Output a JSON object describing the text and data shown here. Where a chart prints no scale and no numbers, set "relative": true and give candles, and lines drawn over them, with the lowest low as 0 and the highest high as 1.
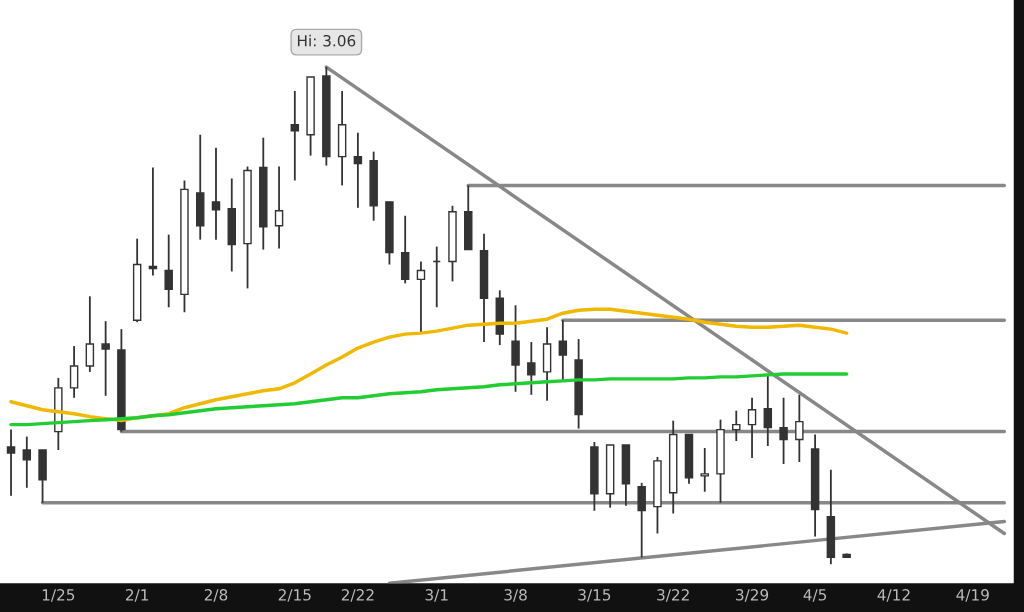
{
  "chart_data": {
    "type": "candlestick",
    "relative": true,
    "tick_labels": "x",
    "grid": false,
    "color": "#333333",
    "categories": [
      null,
      null,
      null,
      "1/25",
      null,
      null,
      null,
      null,
      "2/1",
      null,
      null,
      null,
      null,
      "2/8",
      null,
      null,
      null,
      null,
      "2/15",
      null,
      null,
      null,
      "2/22",
      null,
      null,
      null,
      null,
      "3/1",
      null,
      null,
      null,
      null,
      "3/8",
      null,
      null,
      null,
      null,
      "3/15",
      null,
      null,
      null,
      null,
      "3/22",
      null,
      null,
      null,
      null,
      "3/29",
      null,
      null,
      null,
      "4/5",
      null,
      null,
      null,
      null,
      "4/12",
      null,
      null,
      null,
      null,
      "4/19",
      null,
      null
    ],
    "ohlc": [
      [
        0.236,
        0.271,
        0.138,
        0.224
      ],
      [
        0.23,
        0.257,
        0.154,
        0.21
      ],
      [
        0.23,
        0.23,
        0.124,
        0.17
      ],
      [
        0.267,
        0.375,
        0.23,
        0.355
      ],
      [
        0.355,
        0.439,
        0.335,
        0.399
      ],
      [
        0.399,
        0.539,
        0.387,
        0.443
      ],
      [
        0.443,
        0.489,
        0.339,
        0.433
      ],
      [
        0.431,
        0.473,
        0.267,
        0.271
      ],
      [
        0.491,
        0.655,
        0.487,
        0.603
      ],
      [
        0.599,
        0.798,
        0.581,
        0.595
      ],
      [
        0.591,
        0.663,
        0.517,
        0.553
      ],
      [
        0.543,
        0.772,
        0.507,
        0.754
      ],
      [
        0.747,
        0.864,
        0.653,
        0.681
      ],
      [
        0.729,
        0.838,
        0.653,
        0.713
      ],
      [
        0.715,
        0.776,
        0.589,
        0.643
      ],
      [
        0.645,
        0.8,
        0.555,
        0.792
      ],
      [
        0.798,
        0.858,
        0.633,
        0.679
      ],
      [
        0.681,
        0.8,
        0.635,
        0.711
      ],
      [
        0.884,
        0.952,
        0.772,
        0.872
      ],
      [
        0.864,
        0.98,
        0.822,
        0.98
      ],
      [
        0.982,
        1.0,
        0.802,
        0.82
      ],
      [
        0.82,
        0.952,
        0.762,
        0.884
      ],
      [
        0.82,
        0.868,
        0.717,
        0.806
      ],
      [
        0.812,
        0.83,
        0.691,
        0.721
      ],
      [
        0.729,
        0.729,
        0.603,
        0.627
      ],
      [
        0.627,
        0.701,
        0.565,
        0.573
      ],
      [
        0.573,
        0.609,
        0.467,
        0.591
      ],
      [
        0.609,
        0.639,
        0.517,
        0.609
      ],
      [
        0.609,
        0.721,
        0.569,
        0.709
      ],
      [
        0.709,
        0.762,
        0.633,
        0.633
      ],
      [
        0.631,
        0.665,
        0.447,
        0.535
      ],
      [
        0.535,
        0.551,
        0.441,
        0.463
      ],
      [
        0.449,
        0.521,
        0.347,
        0.401
      ],
      [
        0.405,
        0.447,
        0.341,
        0.381
      ],
      [
        0.387,
        0.477,
        0.329,
        0.443
      ],
      [
        0.449,
        0.491,
        0.367,
        0.421
      ],
      [
        0.411,
        0.453,
        0.273,
        0.301
      ],
      [
        0.236,
        0.246,
        0.108,
        0.142
      ],
      [
        0.142,
        0.24,
        0.114,
        0.24
      ],
      [
        0.24,
        0.24,
        0.118,
        0.162
      ],
      [
        0.156,
        0.164,
        0.014,
        0.108
      ],
      [
        0.116,
        0.216,
        0.062,
        0.208
      ],
      [
        0.144,
        0.289,
        0.102,
        0.261
      ],
      [
        0.261,
        0.261,
        0.162,
        0.174
      ],
      [
        0.178,
        0.234,
        0.146,
        0.182
      ],
      [
        0.182,
        0.291,
        0.124,
        0.271
      ],
      [
        0.271,
        0.309,
        0.248,
        0.281
      ],
      [
        0.281,
        0.335,
        0.214,
        0.311
      ],
      [
        0.313,
        0.381,
        0.238,
        0.275
      ],
      [
        0.275,
        0.335,
        0.202,
        0.251
      ],
      [
        0.251,
        0.341,
        0.206,
        0.287
      ],
      [
        0.232,
        0.261,
        0.056,
        0.11
      ],
      [
        0.096,
        0.19,
        0,
        0.014
      ],
      [
        0.02,
        0.022,
        0.014,
        0.014
      ],
      null,
      null,
      null,
      null,
      null,
      null,
      null,
      null,
      null,
      null
    ],
    "series": [
      {
        "type": "line",
        "color": "#f0b800",
        "values": [
          0.327,
          0.319,
          0.311,
          0.307,
          0.303,
          0.297,
          0.293,
          0.289,
          0.295,
          0.299,
          0.303,
          0.315,
          0.323,
          0.331,
          0.337,
          0.343,
          0.349,
          0.353,
          0.365,
          0.383,
          0.401,
          0.417,
          0.435,
          0.447,
          0.457,
          0.463,
          0.465,
          0.469,
          0.475,
          0.481,
          0.483,
          0.485,
          0.485,
          0.489,
          0.493,
          0.505,
          0.511,
          0.513,
          0.513,
          0.509,
          0.505,
          0.501,
          0.497,
          0.493,
          0.487,
          0.483,
          0.479,
          0.477,
          0.477,
          0.479,
          0.481,
          0.477,
          0.473,
          0.465,
          null,
          null,
          null,
          null,
          null,
          null,
          null,
          null,
          null,
          null
        ]
      },
      {
        "type": "line",
        "color": "#22cc33",
        "values": [
          0.281,
          0.281,
          0.283,
          0.285,
          0.287,
          0.289,
          0.291,
          0.293,
          0.295,
          0.299,
          0.301,
          0.305,
          0.309,
          0.313,
          0.315,
          0.317,
          0.319,
          0.321,
          0.323,
          0.327,
          0.331,
          0.335,
          0.335,
          0.339,
          0.343,
          0.345,
          0.347,
          0.351,
          0.353,
          0.355,
          0.357,
          0.361,
          0.363,
          0.365,
          0.367,
          0.369,
          0.371,
          0.371,
          0.373,
          0.373,
          0.373,
          0.373,
          0.373,
          0.375,
          0.375,
          0.377,
          0.377,
          0.379,
          0.381,
          0.383,
          0.383,
          0.383,
          0.383,
          0.383,
          null,
          null,
          null,
          null,
          null,
          null,
          null,
          null,
          null,
          null
        ]
      },
      {
        "type": "line",
        "color": "#888888",
        "values": [
          null,
          null,
          null,
          null,
          null,
          null,
          null,
          null,
          null,
          null,
          null,
          null,
          null,
          null,
          null,
          null,
          null,
          null,
          null,
          null,
          1.0,
          null,
          null,
          null,
          null,
          null,
          null,
          null,
          null,
          null,
          null,
          null,
          null,
          null,
          null,
          null,
          null,
          null,
          null,
          null,
          null,
          null,
          null,
          null,
          null,
          null,
          null,
          null,
          null,
          null,
          null,
          null,
          null,
          null,
          null,
          null,
          null,
          null,
          null,
          null,
          null,
          null,
          null,
          0.062
        ]
      },
      {
        "type": "line",
        "color": "#888888",
        "values": [
          null,
          null,
          null,
          null,
          null,
          null,
          null,
          null,
          null,
          null,
          null,
          null,
          null,
          null,
          null,
          null,
          null,
          null,
          null,
          null,
          null,
          null,
          null,
          null,
          -0.038,
          null,
          null,
          null,
          null,
          null,
          null,
          null,
          null,
          null,
          null,
          null,
          null,
          null,
          null,
          null,
          null,
          null,
          null,
          null,
          null,
          null,
          null,
          null,
          null,
          null,
          null,
          null,
          null,
          null,
          null,
          null,
          null,
          null,
          null,
          null,
          null,
          null,
          null,
          0.086
        ]
      },
      {
        "type": "line",
        "color": "#888888",
        "values": [
          null,
          null,
          null,
          null,
          null,
          null,
          null,
          null,
          null,
          null,
          null,
          null,
          null,
          null,
          null,
          null,
          null,
          null,
          null,
          null,
          null,
          null,
          null,
          null,
          null,
          null,
          null,
          null,
          null,
          0.762,
          null,
          null,
          null,
          null,
          null,
          null,
          null,
          null,
          null,
          null,
          null,
          null,
          null,
          null,
          null,
          null,
          null,
          null,
          null,
          null,
          null,
          null,
          null,
          null,
          null,
          null,
          null,
          null,
          null,
          null,
          null,
          null,
          null,
          0.762
        ]
      },
      {
        "type": "line",
        "color": "#888888",
        "values": [
          null,
          null,
          null,
          null,
          null,
          null,
          null,
          null,
          null,
          null,
          null,
          null,
          null,
          null,
          null,
          null,
          null,
          null,
          null,
          null,
          null,
          null,
          null,
          null,
          null,
          null,
          null,
          null,
          null,
          null,
          null,
          null,
          null,
          null,
          null,
          0.491,
          null,
          null,
          null,
          null,
          null,
          null,
          null,
          null,
          null,
          null,
          null,
          null,
          null,
          null,
          null,
          null,
          null,
          null,
          null,
          null,
          null,
          null,
          null,
          null,
          null,
          null,
          null,
          0.491
        ]
      },
      {
        "type": "line",
        "color": "#888888",
        "values": [
          null,
          null,
          null,
          null,
          null,
          null,
          null,
          0.267,
          null,
          null,
          null,
          null,
          null,
          null,
          null,
          null,
          null,
          null,
          null,
          null,
          null,
          null,
          null,
          null,
          null,
          null,
          null,
          null,
          null,
          null,
          null,
          null,
          null,
          null,
          null,
          null,
          null,
          null,
          null,
          null,
          null,
          null,
          null,
          null,
          null,
          null,
          null,
          null,
          null,
          null,
          null,
          null,
          null,
          null,
          null,
          null,
          null,
          null,
          null,
          null,
          null,
          null,
          null,
          0.267
        ]
      },
      {
        "type": "line",
        "color": "#888888",
        "values": [
          null,
          null,
          0.124,
          null,
          null,
          null,
          null,
          null,
          null,
          null,
          null,
          null,
          null,
          null,
          null,
          null,
          null,
          null,
          null,
          null,
          null,
          null,
          null,
          null,
          null,
          null,
          null,
          null,
          null,
          null,
          null,
          null,
          null,
          null,
          null,
          null,
          null,
          null,
          null,
          null,
          null,
          null,
          null,
          null,
          null,
          null,
          null,
          null,
          null,
          null,
          null,
          null,
          null,
          null,
          null,
          null,
          null,
          null,
          null,
          null,
          null,
          null,
          null,
          0.124
        ]
      }
    ],
    "annotations": [
      "Hi: 3.06"
    ]
  }
}
